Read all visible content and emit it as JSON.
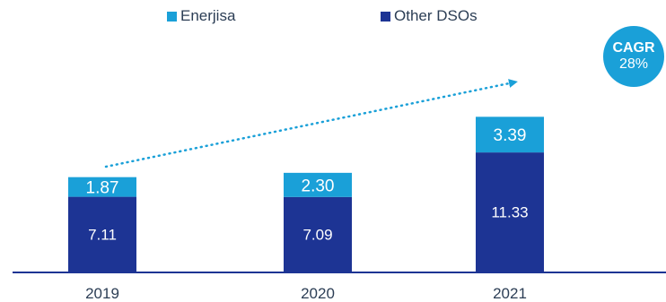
{
  "chart_data": {
    "type": "bar",
    "stacked": true,
    "categories": [
      "2019",
      "2020",
      "2021"
    ],
    "series": [
      {
        "name": "Other DSOs",
        "values": [
          7.11,
          7.09,
          11.33
        ],
        "color": "#1d3494"
      },
      {
        "name": "Enerjisa",
        "values": [
          1.87,
          2.3,
          3.39
        ],
        "color": "#1aa0d8"
      }
    ],
    "value_labels": [
      [
        "7.11",
        "7.09",
        "11.33"
      ],
      [
        "1.87",
        "2.30",
        "3.39"
      ]
    ],
    "ylim": [
      0,
      15
    ],
    "grid": false,
    "legend_position": "top-center",
    "annotation": {
      "title": "CAGR",
      "value": "28%",
      "arrow": "dotted, from 2019 to 2021"
    }
  }
}
